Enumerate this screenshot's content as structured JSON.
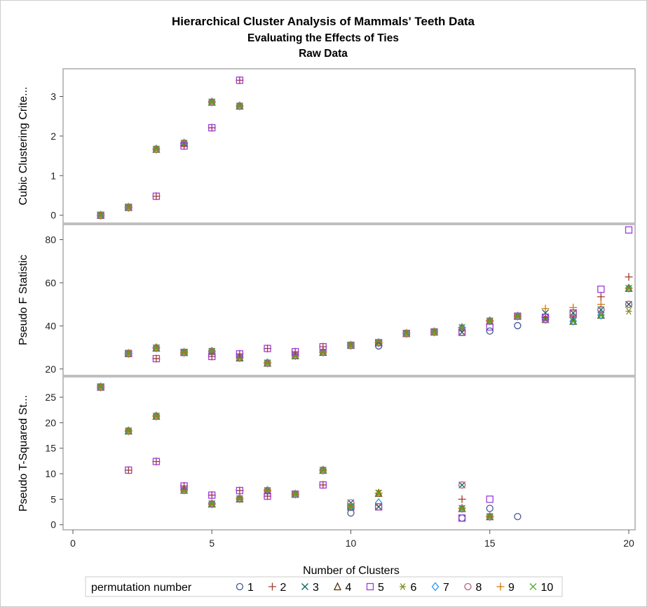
{
  "chart_data": {
    "type": "scatter",
    "title": "Hierarchical Cluster Analysis of Mammals' Teeth Data",
    "subtitles": [
      "Evaluating the Effects of Ties",
      "Raw Data"
    ],
    "xlabel": "Number of Clusters",
    "xlim": [
      0,
      20
    ],
    "xticks": [
      0,
      5,
      10,
      15,
      20
    ],
    "legend": {
      "title": "permutation number",
      "position": "bottom",
      "entries": [
        {
          "id": 1,
          "label": "1",
          "marker": "circle",
          "color": "#445694"
        },
        {
          "id": 2,
          "label": "2",
          "marker": "plus",
          "color": "#A23A2E"
        },
        {
          "id": 3,
          "label": "3",
          "marker": "x",
          "color": "#01665E"
        },
        {
          "id": 4,
          "label": "4",
          "marker": "triangle",
          "color": "#543005"
        },
        {
          "id": 5,
          "label": "5",
          "marker": "square",
          "color": "#9D3CDB"
        },
        {
          "id": 6,
          "label": "6",
          "marker": "asterisk",
          "color": "#7F8E1F"
        },
        {
          "id": 7,
          "label": "7",
          "marker": "diamond",
          "color": "#2597FA"
        },
        {
          "id": 8,
          "label": "8",
          "marker": "circle",
          "color": "#B26084"
        },
        {
          "id": 9,
          "label": "9",
          "marker": "plus",
          "color": "#D17800"
        },
        {
          "id": 10,
          "label": "10",
          "marker": "x",
          "color": "#47A82A"
        }
      ]
    },
    "panels": [
      {
        "ylabel": "Cubic Clustering Crite...",
        "ylim": [
          -0.2,
          3.7
        ],
        "yticks": [
          0,
          1,
          2,
          3
        ],
        "points": [
          {
            "x": 1,
            "y": 0,
            "perms": [
              1,
              2,
              3,
              4,
              5,
              6,
              7,
              8,
              9,
              10
            ]
          },
          {
            "x": 2,
            "y": 0.2,
            "perms": [
              1,
              2,
              3,
              4,
              5,
              6,
              7,
              8,
              9,
              10
            ]
          },
          {
            "x": 3,
            "y": 1.67,
            "perms": [
              1,
              3,
              4,
              6,
              7,
              8,
              9,
              10
            ]
          },
          {
            "x": 3,
            "y": 0.48,
            "perms": [
              2,
              5
            ]
          },
          {
            "x": 4,
            "y": 1.82,
            "perms": [
              1,
              3,
              4,
              6,
              7,
              8,
              9,
              10
            ]
          },
          {
            "x": 4,
            "y": 1.75,
            "perms": [
              2,
              5
            ]
          },
          {
            "x": 5,
            "y": 2.86,
            "perms": [
              1,
              3,
              4,
              6,
              7,
              8,
              9,
              10
            ]
          },
          {
            "x": 5,
            "y": 2.21,
            "perms": [
              2,
              5
            ]
          },
          {
            "x": 6,
            "y": 2.76,
            "perms": [
              1,
              3,
              4,
              6,
              7,
              8,
              9,
              10
            ]
          },
          {
            "x": 6,
            "y": 3.41,
            "perms": [
              2,
              5
            ]
          }
        ]
      },
      {
        "ylabel": "Pseudo F Statistic",
        "ylim": [
          17,
          87
        ],
        "yticks": [
          20,
          40,
          60,
          80
        ],
        "points": [
          {
            "x": 2,
            "y": 27.2,
            "perms": [
              1,
              2,
              3,
              4,
              5,
              6,
              7,
              8,
              9,
              10
            ]
          },
          {
            "x": 3,
            "y": 29.8,
            "perms": [
              1,
              3,
              4,
              6,
              7,
              8,
              9,
              10
            ]
          },
          {
            "x": 3,
            "y": 24.8,
            "perms": [
              2,
              5
            ]
          },
          {
            "x": 4,
            "y": 27.7,
            "perms": [
              1,
              2,
              3,
              4,
              5,
              6,
              7,
              8,
              9,
              10
            ]
          },
          {
            "x": 5,
            "y": 28.2,
            "perms": [
              1,
              3,
              4,
              6,
              7,
              8,
              9,
              10
            ]
          },
          {
            "x": 5,
            "y": 25.8,
            "perms": [
              2,
              5
            ]
          },
          {
            "x": 6,
            "y": 25.2,
            "perms": [
              1,
              3,
              4,
              6,
              7,
              8,
              9,
              10
            ]
          },
          {
            "x": 6,
            "y": 27.0,
            "perms": [
              2,
              5
            ]
          },
          {
            "x": 7,
            "y": 22.8,
            "perms": [
              1,
              3,
              4,
              6,
              7,
              8,
              9,
              10
            ]
          },
          {
            "x": 7,
            "y": 29.5,
            "perms": [
              2,
              5
            ]
          },
          {
            "x": 8,
            "y": 26.2,
            "perms": [
              1,
              3,
              4,
              6,
              7,
              8,
              9,
              10
            ]
          },
          {
            "x": 8,
            "y": 28.0,
            "perms": [
              2,
              5
            ]
          },
          {
            "x": 9,
            "y": 27.8,
            "perms": [
              1,
              3,
              4,
              6,
              7,
              8,
              9,
              10
            ]
          },
          {
            "x": 9,
            "y": 30.3,
            "perms": [
              2,
              5
            ]
          },
          {
            "x": 10,
            "y": 31.0,
            "perms": [
              1,
              2,
              3,
              4,
              5,
              6,
              7,
              8,
              9,
              10
            ]
          },
          {
            "x": 11,
            "y": 32.2,
            "perms": [
              2,
              3,
              4,
              5,
              6,
              7,
              8,
              9,
              10
            ]
          },
          {
            "x": 11,
            "y": 30.7,
            "perms": [
              1
            ]
          },
          {
            "x": 12,
            "y": 36.5,
            "perms": [
              1,
              2,
              3,
              4,
              5,
              6,
              7,
              8,
              9,
              10
            ]
          },
          {
            "x": 13,
            "y": 37.2,
            "perms": [
              1,
              2,
              3,
              4,
              5,
              6,
              7,
              8,
              9,
              10
            ]
          },
          {
            "x": 14,
            "y": 39.2,
            "perms": [
              2,
              4,
              6,
              7,
              9,
              10
            ]
          },
          {
            "x": 14,
            "y": 37.0,
            "perms": [
              1,
              3,
              5,
              8
            ]
          },
          {
            "x": 15,
            "y": 42.3,
            "perms": [
              2,
              3,
              4,
              6,
              7,
              8,
              9,
              10
            ]
          },
          {
            "x": 15,
            "y": 39.5,
            "perms": [
              5
            ]
          },
          {
            "x": 15,
            "y": 37.6,
            "perms": [
              1
            ]
          },
          {
            "x": 16,
            "y": 44.5,
            "perms": [
              2,
              3,
              4,
              5,
              6,
              7,
              8,
              9,
              10
            ]
          },
          {
            "x": 16,
            "y": 40.1,
            "perms": [
              1
            ]
          },
          {
            "x": 17,
            "y": 43.0,
            "perms": [
              1,
              4,
              6,
              7,
              8,
              10
            ]
          },
          {
            "x": 17,
            "y": 46.0,
            "perms": [
              3
            ]
          },
          {
            "x": 17,
            "y": 48.0,
            "perms": [
              9
            ]
          },
          {
            "x": 17,
            "y": 44.0,
            "perms": [
              2,
              5
            ]
          },
          {
            "x": 18,
            "y": 42.2,
            "perms": [
              4,
              6,
              7,
              10
            ]
          },
          {
            "x": 18,
            "y": 48.5,
            "perms": [
              9
            ]
          },
          {
            "x": 18,
            "y": 46.0,
            "perms": [
              1,
              3,
              5,
              8
            ]
          },
          {
            "x": 18,
            "y": 44.0,
            "perms": [
              2
            ]
          },
          {
            "x": 19,
            "y": 45.0,
            "perms": [
              4,
              6,
              7,
              10
            ]
          },
          {
            "x": 19,
            "y": 57.0,
            "perms": [
              5
            ]
          },
          {
            "x": 19,
            "y": 53.5,
            "perms": [
              2
            ]
          },
          {
            "x": 19,
            "y": 50.0,
            "perms": [
              9
            ]
          },
          {
            "x": 19,
            "y": 47.5,
            "perms": [
              1,
              3,
              8
            ]
          },
          {
            "x": 20,
            "y": 84.5,
            "perms": [
              5
            ]
          },
          {
            "x": 20,
            "y": 62.7,
            "perms": [
              2
            ]
          },
          {
            "x": 20,
            "y": 57.5,
            "perms": [
              4,
              7,
              9,
              10
            ]
          },
          {
            "x": 20,
            "y": 50.0,
            "perms": [
              1,
              3,
              8
            ]
          },
          {
            "x": 20,
            "y": 46.8,
            "perms": [
              6
            ]
          }
        ]
      },
      {
        "ylabel": "Pseudo T-Squared St...",
        "ylim": [
          -1,
          29
        ],
        "yticks": [
          0,
          5,
          10,
          15,
          20,
          25
        ],
        "points": [
          {
            "x": 1,
            "y": 27.0,
            "perms": [
              1,
              2,
              3,
              4,
              5,
              6,
              7,
              8,
              9,
              10
            ]
          },
          {
            "x": 2,
            "y": 18.4,
            "perms": [
              1,
              3,
              4,
              6,
              7,
              8,
              9,
              10
            ]
          },
          {
            "x": 2,
            "y": 10.7,
            "perms": [
              2,
              5
            ]
          },
          {
            "x": 3,
            "y": 21.3,
            "perms": [
              1,
              3,
              4,
              6,
              7,
              8,
              9,
              10
            ]
          },
          {
            "x": 3,
            "y": 12.4,
            "perms": [
              2,
              5
            ]
          },
          {
            "x": 4,
            "y": 6.8,
            "perms": [
              1,
              3,
              4,
              6,
              7,
              8,
              9,
              10
            ]
          },
          {
            "x": 4,
            "y": 7.6,
            "perms": [
              2,
              5
            ]
          },
          {
            "x": 5,
            "y": 4.1,
            "perms": [
              1,
              3,
              4,
              6,
              7,
              8,
              9,
              10
            ]
          },
          {
            "x": 5,
            "y": 5.8,
            "perms": [
              2,
              5
            ]
          },
          {
            "x": 6,
            "y": 5.1,
            "perms": [
              1,
              3,
              4,
              6,
              7,
              8,
              9,
              10
            ]
          },
          {
            "x": 6,
            "y": 6.7,
            "perms": [
              2,
              5
            ]
          },
          {
            "x": 7,
            "y": 6.7,
            "perms": [
              1,
              3,
              4,
              6,
              7,
              8,
              9,
              10
            ]
          },
          {
            "x": 7,
            "y": 5.6,
            "perms": [
              2,
              5
            ]
          },
          {
            "x": 8,
            "y": 6.0,
            "perms": [
              1,
              2,
              3,
              4,
              5,
              6,
              7,
              8,
              9,
              10
            ]
          },
          {
            "x": 9,
            "y": 10.7,
            "perms": [
              1,
              3,
              4,
              6,
              7,
              8,
              9,
              10
            ]
          },
          {
            "x": 9,
            "y": 7.8,
            "perms": [
              2,
              5
            ]
          },
          {
            "x": 10,
            "y": 4.3,
            "perms": [
              3,
              8
            ]
          },
          {
            "x": 10,
            "y": 3.5,
            "perms": [
              2,
              4,
              5,
              6,
              7,
              9,
              10
            ]
          },
          {
            "x": 10,
            "y": 2.3,
            "perms": [
              1
            ]
          },
          {
            "x": 11,
            "y": 6.2,
            "perms": [
              2,
              4,
              6,
              9,
              10
            ]
          },
          {
            "x": 11,
            "y": 4.3,
            "perms": [
              7
            ]
          },
          {
            "x": 11,
            "y": 3.5,
            "perms": [
              1,
              3,
              5,
              8
            ]
          },
          {
            "x": 14,
            "y": 7.8,
            "perms": [
              3,
              8
            ]
          },
          {
            "x": 14,
            "y": 5.0,
            "perms": [
              2
            ]
          },
          {
            "x": 14,
            "y": 3.2,
            "perms": [
              4,
              6,
              7,
              9,
              10
            ]
          },
          {
            "x": 14,
            "y": 1.3,
            "perms": [
              1,
              5
            ]
          },
          {
            "x": 15,
            "y": 5.0,
            "perms": [
              5
            ]
          },
          {
            "x": 15,
            "y": 3.2,
            "perms": [
              1
            ]
          },
          {
            "x": 15,
            "y": 1.6,
            "perms": [
              2,
              3,
              4,
              6,
              7,
              8,
              9,
              10
            ]
          },
          {
            "x": 16,
            "y": 1.6,
            "perms": [
              1
            ]
          }
        ]
      }
    ]
  }
}
